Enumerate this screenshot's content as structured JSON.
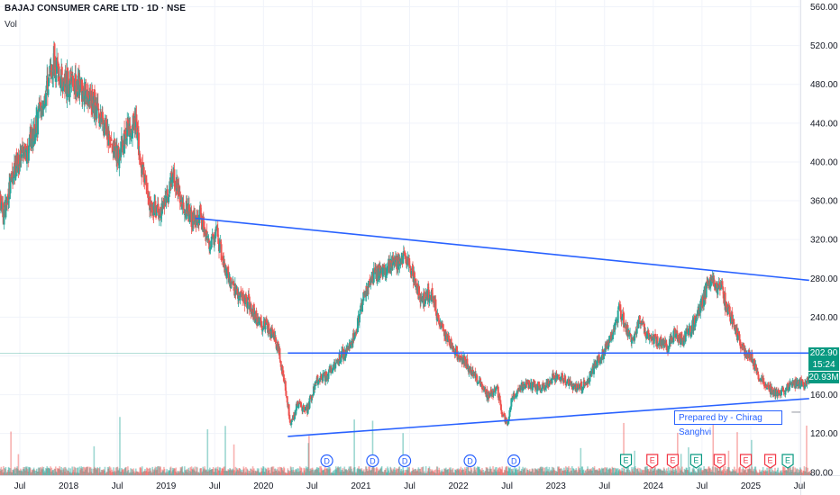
{
  "header": {
    "title": "BAJAJ CONSUMER CARE LTD · 1D · NSE",
    "volume_label": "Vol"
  },
  "badges": {
    "price": "202.90",
    "countdown": "15:24",
    "volume": "20.93M"
  },
  "annotation": "Prepared by - Chirag Sanghvi",
  "colors": {
    "up": "#26a69a",
    "down": "#ef5350",
    "trendline": "#2962ff",
    "earnings": "#f23645",
    "dividend": "#2962ff",
    "earnings_green": "#089981",
    "last_price": "#089981"
  },
  "chart_data": {
    "type": "candlestick",
    "title": "BAJAJ CONSUMER CARE LTD · 1D · NSE",
    "y_axis": {
      "position": "right",
      "ylim": [
        77,
        567
      ],
      "ticks": [
        80,
        120,
        160,
        200,
        240,
        280,
        320,
        360,
        400,
        440,
        480,
        520,
        560
      ]
    },
    "x_axis": {
      "tick_labels": [
        "Jul",
        "2018",
        "Jul",
        "2019",
        "Jul",
        "2020",
        "Jul",
        "2021",
        "Jul",
        "2022",
        "Jul",
        "2023",
        "Jul",
        "2024",
        "Jul",
        "2025",
        "Jul"
      ],
      "tick_positions": [
        2017.5,
        2018.0,
        2018.5,
        2019.0,
        2019.5,
        2020.0,
        2020.5,
        2021.0,
        2021.5,
        2022.0,
        2022.5,
        2023.0,
        2023.5,
        2024.0,
        2024.5,
        2025.0,
        2025.5
      ]
    },
    "price_anchors": [
      [
        2017.25,
        380
      ],
      [
        2017.33,
        345
      ],
      [
        2017.45,
        395
      ],
      [
        2017.58,
        410
      ],
      [
        2017.72,
        455
      ],
      [
        2017.85,
        505
      ],
      [
        2017.95,
        480
      ],
      [
        2018.05,
        485
      ],
      [
        2018.15,
        475
      ],
      [
        2018.3,
        455
      ],
      [
        2018.42,
        420
      ],
      [
        2018.5,
        405
      ],
      [
        2018.58,
        425
      ],
      [
        2018.68,
        445
      ],
      [
        2018.75,
        395
      ],
      [
        2018.85,
        350
      ],
      [
        2018.98,
        355
      ],
      [
        2019.08,
        385
      ],
      [
        2019.15,
        360
      ],
      [
        2019.28,
        340
      ],
      [
        2019.35,
        345
      ],
      [
        2019.45,
        315
      ],
      [
        2019.52,
        325
      ],
      [
        2019.6,
        290
      ],
      [
        2019.7,
        270
      ],
      [
        2019.85,
        255
      ],
      [
        2019.95,
        235
      ],
      [
        2020.05,
        230
      ],
      [
        2020.15,
        210
      ],
      [
        2020.22,
        170
      ],
      [
        2020.28,
        130
      ],
      [
        2020.35,
        150
      ],
      [
        2020.45,
        145
      ],
      [
        2020.55,
        175
      ],
      [
        2020.65,
        180
      ],
      [
        2020.75,
        195
      ],
      [
        2020.85,
        205
      ],
      [
        2020.95,
        225
      ],
      [
        2021.05,
        270
      ],
      [
        2021.15,
        285
      ],
      [
        2021.25,
        290
      ],
      [
        2021.35,
        295
      ],
      [
        2021.45,
        300
      ],
      [
        2021.55,
        280
      ],
      [
        2021.62,
        255
      ],
      [
        2021.72,
        265
      ],
      [
        2021.8,
        235
      ],
      [
        2021.9,
        215
      ],
      [
        2022.0,
        200
      ],
      [
        2022.1,
        190
      ],
      [
        2022.2,
        175
      ],
      [
        2022.3,
        160
      ],
      [
        2022.4,
        165
      ],
      [
        2022.45,
        140
      ],
      [
        2022.5,
        130
      ],
      [
        2022.55,
        155
      ],
      [
        2022.62,
        165
      ],
      [
        2022.7,
        172
      ],
      [
        2022.8,
        168
      ],
      [
        2022.9,
        170
      ],
      [
        2023.0,
        180
      ],
      [
        2023.1,
        175
      ],
      [
        2023.2,
        168
      ],
      [
        2023.3,
        170
      ],
      [
        2023.4,
        190
      ],
      [
        2023.5,
        205
      ],
      [
        2023.58,
        220
      ],
      [
        2023.65,
        248
      ],
      [
        2023.7,
        235
      ],
      [
        2023.78,
        215
      ],
      [
        2023.85,
        235
      ],
      [
        2023.95,
        220
      ],
      [
        2024.05,
        215
      ],
      [
        2024.15,
        210
      ],
      [
        2024.22,
        225
      ],
      [
        2024.3,
        215
      ],
      [
        2024.4,
        230
      ],
      [
        2024.48,
        250
      ],
      [
        2024.55,
        270
      ],
      [
        2024.62,
        275
      ],
      [
        2024.7,
        270
      ],
      [
        2024.75,
        250
      ],
      [
        2024.82,
        235
      ],
      [
        2024.9,
        210
      ],
      [
        2025.0,
        200
      ],
      [
        2025.08,
        180
      ],
      [
        2025.15,
        170
      ],
      [
        2025.25,
        160
      ],
      [
        2025.35,
        165
      ],
      [
        2025.45,
        172
      ],
      [
        2025.55,
        170
      ],
      [
        2025.62,
        178
      ]
    ],
    "last_price": 202.9,
    "last_volume": "20.93M",
    "trendlines": [
      {
        "from": [
          2019.3,
          342
        ],
        "to": [
          2025.6,
          278
        ]
      },
      {
        "from": [
          2020.25,
          202.9
        ],
        "to": [
          2025.6,
          202.9
        ]
      },
      {
        "from": [
          2020.25,
          117
        ],
        "to": [
          2025.6,
          156
        ]
      }
    ],
    "horizontal_ray": {
      "from": 2025.42,
      "y": 142
    },
    "event_markers": [
      {
        "type": "D",
        "x": 2020.65
      },
      {
        "type": "D",
        "x": 2021.12
      },
      {
        "type": "D",
        "x": 2021.45
      },
      {
        "type": "D",
        "x": 2022.12
      },
      {
        "type": "D",
        "x": 2022.57
      },
      {
        "type": "E",
        "x": 2023.72,
        "tone": "green"
      },
      {
        "type": "E",
        "x": 2023.99,
        "tone": "red"
      },
      {
        "type": "E",
        "x": 2024.2,
        "tone": "red"
      },
      {
        "type": "E",
        "x": 2024.44,
        "tone": "green"
      },
      {
        "type": "E",
        "x": 2024.68,
        "tone": "red"
      },
      {
        "type": "E",
        "x": 2024.95,
        "tone": "red"
      },
      {
        "type": "E",
        "x": 2025.2,
        "tone": "red"
      },
      {
        "type": "E",
        "x": 2025.38,
        "tone": "green"
      }
    ]
  }
}
